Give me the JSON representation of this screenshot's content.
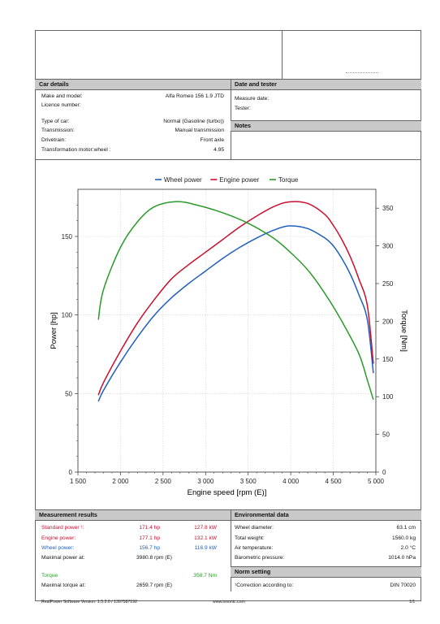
{
  "car_details": {
    "title": "Car details",
    "make_label": "Make and model:",
    "make_value": "Alfa Romeo 156 1.9 JTD",
    "licence_label": "Licence number:",
    "type_label": "Type of car:",
    "type_value": "Normal (Gasoline (turbo))",
    "transmission_label": "Transmission:",
    "transmission_value": "Manual transmission",
    "drivetrain_label": "Drivetrain:",
    "drivetrain_value": "Front axle",
    "transform_label": "Transformation motor:wheel :",
    "transform_value": "4.95"
  },
  "date_tester": {
    "title": "Date and tester",
    "measure_label": "Measure date:",
    "tester_label": "Tester:"
  },
  "notes": {
    "title": "Notes"
  },
  "chart_data": {
    "type": "line",
    "legend": [
      "Wheel power",
      "Engine power",
      "Torque"
    ],
    "legend_position": "top",
    "xlabel": "Engine speed [rpm (E)]",
    "ylabel_left": "Power [hp]",
    "ylabel_right": "Torque [Nm]",
    "xlim": [
      1500,
      5000
    ],
    "ylim_left": [
      0,
      180
    ],
    "ylim_right": [
      0,
      375
    ],
    "x_ticks": [
      "1 500",
      "2 000",
      "2 500",
      "3 000",
      "3 500",
      "4 000",
      "4 500",
      "5 000"
    ],
    "y_left_ticks": [
      "0",
      "50",
      "100",
      "150"
    ],
    "y_right_ticks": [
      "0",
      "50",
      "100",
      "150",
      "200",
      "250",
      "300",
      "350"
    ],
    "grid": true,
    "series": [
      {
        "name": "Wheel power",
        "axis": "left",
        "color": "#1f5fc0",
        "x": [
          1740,
          1800,
          2000,
          2200,
          2400,
          2600,
          2800,
          3000,
          3200,
          3400,
          3600,
          3800,
          3980,
          4200,
          4400,
          4500,
          4600,
          4700,
          4800,
          4900,
          4970
        ],
        "y": [
          45,
          52,
          70,
          86,
          100,
          111,
          120,
          128,
          136,
          143,
          149,
          154,
          156.7,
          155,
          149,
          144,
          136,
          126,
          113,
          97,
          63
        ]
      },
      {
        "name": "Engine power",
        "axis": "left",
        "color": "#c8102e",
        "x": [
          1740,
          1800,
          2000,
          2200,
          2400,
          2600,
          2800,
          3000,
          3200,
          3400,
          3600,
          3800,
          3980,
          4200,
          4400,
          4500,
          4600,
          4700,
          4800,
          4900,
          4970
        ],
        "y": [
          49,
          57,
          77,
          95,
          110,
          123,
          132,
          140,
          148,
          156,
          163,
          169,
          172,
          171,
          164,
          157,
          148,
          137,
          123,
          106,
          69
        ]
      },
      {
        "name": "Torque",
        "axis": "right",
        "color": "#2a9a2a",
        "x": [
          1740,
          1800,
          2000,
          2200,
          2400,
          2660,
          2900,
          3200,
          3500,
          3800,
          4000,
          4200,
          4400,
          4600,
          4800,
          4900,
          4970
        ],
        "y": [
          202,
          242,
          298,
          332,
          352,
          358.7,
          354,
          344,
          330,
          310,
          291,
          268,
          237,
          200,
          157,
          122,
          96
        ]
      }
    ]
  },
  "results": {
    "title": "Measurement results",
    "standard_label": "Standard power ¹:",
    "standard_hp": "171.4 hp",
    "standard_kw": "127.8 kW",
    "engine_label": "Engine power:",
    "engine_hp": "177.1 hp",
    "engine_kw": "132.1 kW",
    "wheel_label": "Wheel power:",
    "wheel_hp": "156.7 hp",
    "wheel_kw": "116.9 kW",
    "maxpower_label": "Maximal power at:",
    "maxpower_value": "3980.8 rpm (E)",
    "torque_label": "Torque",
    "torque_value": "358.7 Nm",
    "maxtorque_label": "Maximal torque at:",
    "maxtorque_value": "2659.7 rpm (E)"
  },
  "environment": {
    "title": "Environmental data",
    "wheel_diam_label": "Wheel diameter:",
    "wheel_diam_value": "63.1 cm",
    "weight_label": "Total weight:",
    "weight_value": "1560.0 kg",
    "air_label": "Air temperature:",
    "air_value": "2.0 °C",
    "baro_label": "Barometric pressure:",
    "baro_value": "1014.0 hPa"
  },
  "norm": {
    "title": "Norm setting",
    "label": "¹Correction according to:",
    "value": "DIN 70020"
  },
  "footer": {
    "software": "RealPower Software Version: 1.5.2.0 / 1307587192",
    "website": "www.insonic.com",
    "page": "1/1"
  }
}
